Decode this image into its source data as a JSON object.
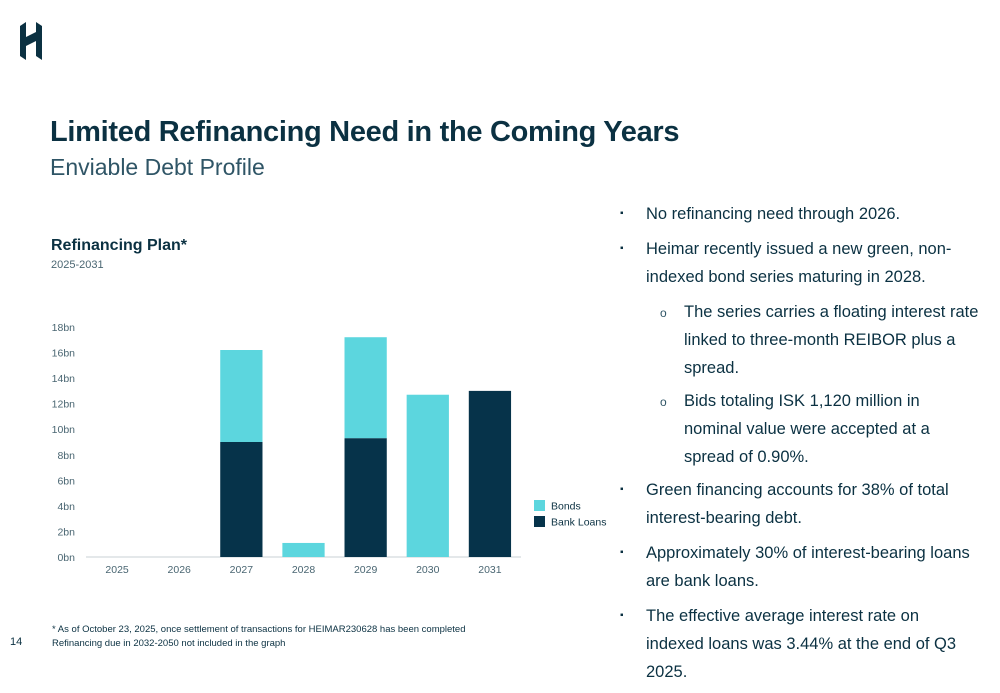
{
  "slide": {
    "title": "Limited Refinancing Need in the Coming Years",
    "subtitle": "Enviable Debt Profile",
    "page_number": "14"
  },
  "chart_data": {
    "type": "bar",
    "stacked": true,
    "title": "Refinancing Plan*",
    "subtitle": "2025-2031",
    "categories": [
      "2025",
      "2026",
      "2027",
      "2028",
      "2029",
      "2030",
      "2031"
    ],
    "series": [
      {
        "name": "Bank Loans",
        "color": "#06334a",
        "values": [
          0,
          0,
          9,
          0,
          9.3,
          0,
          13
        ]
      },
      {
        "name": "Bonds",
        "color": "#5cd6de",
        "values": [
          0,
          0,
          7.2,
          1.1,
          7.9,
          12.7,
          0
        ]
      }
    ],
    "yticks": [
      "0bn",
      "2bn",
      "4bn",
      "6bn",
      "8bn",
      "10bn",
      "12bn",
      "14bn",
      "16bn",
      "18bn"
    ],
    "ylim": [
      0,
      18
    ],
    "legend": [
      {
        "label": "Bonds",
        "color": "#5cd6de"
      },
      {
        "label": "Bank Loans",
        "color": "#06334a"
      }
    ],
    "legend_position": "right"
  },
  "bullets": [
    {
      "text": "No refinancing need through 2026.",
      "subs": []
    },
    {
      "text": "Heimar recently issued a new green, non-indexed bond series maturing in 2028.",
      "subs": [
        "The series carries a floating interest rate linked to three-month REIBOR plus a spread.",
        "Bids totaling ISK 1,120 million in nominal value were accepted at a spread of 0.90%."
      ]
    },
    {
      "text": "Green financing accounts for 38% of total interest-bearing debt.",
      "subs": []
    },
    {
      "text": "Approximately 30% of interest-bearing loans are bank loans.",
      "subs": []
    },
    {
      "text": "The effective average interest rate on indexed loans was 3.44% at the end of Q3 2025.",
      "subs": []
    }
  ],
  "markers": {
    "bullet": "▪",
    "sub": "o"
  },
  "footnotes": [
    "* As of October 23, 2025, once settlement of transactions for HEIMAR230628 has been completed",
    "Refinancing due in 2032-2050 not included in the graph"
  ],
  "icons": {
    "logo": "heimar-logo-icon"
  }
}
